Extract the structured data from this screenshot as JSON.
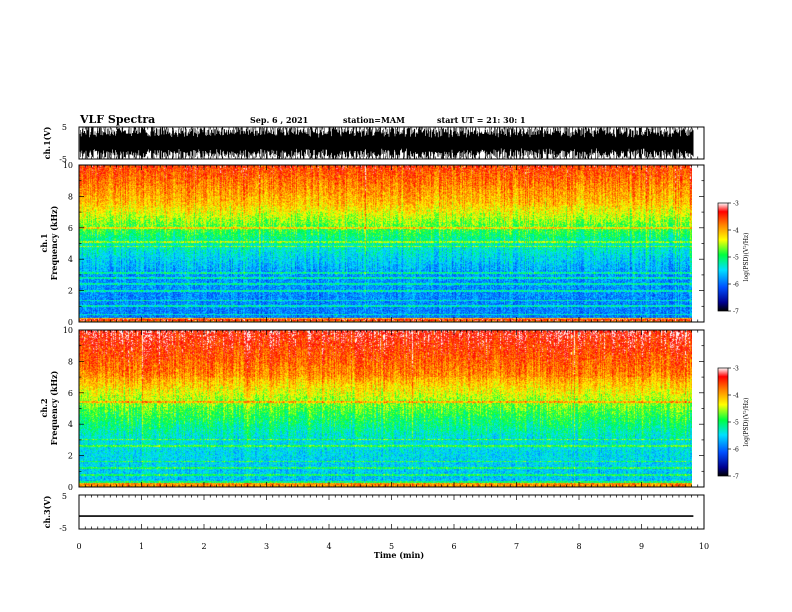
{
  "header": {
    "title": "VLF Spectra",
    "date": "Sep. 6 , 2021",
    "station": "station=MAM",
    "start_ut": "start UT =  21: 30: 1"
  },
  "chart_data": [
    {
      "type": "line",
      "name": "ch1-waveform",
      "ylabel": "ch.1(V)",
      "ylim": [
        -5,
        5
      ],
      "yticks": [
        "5",
        "-5"
      ],
      "xlim": [
        0,
        10
      ]
    },
    {
      "type": "heatmap",
      "name": "ch1-spectrogram",
      "ylabel_line1": "ch.1",
      "ylabel_line2": "Frequency (kHz)",
      "ylim": [
        0,
        10
      ],
      "yticks": [
        "0",
        "2",
        "4",
        "6",
        "8",
        "10"
      ],
      "xlim": [
        0,
        10
      ],
      "colorbar": {
        "label": "log(PSD)(V²/Hz)",
        "range": [
          -7,
          -3
        ],
        "ticks": [
          "-3",
          "-4",
          "-5",
          "-6",
          "-7"
        ]
      }
    },
    {
      "type": "heatmap",
      "name": "ch2-spectrogram",
      "ylabel_line1": "ch.2",
      "ylabel_line2": "Frequency (kHz)",
      "ylim": [
        0,
        10
      ],
      "yticks": [
        "0",
        "2",
        "4",
        "6",
        "8",
        "10"
      ],
      "xlim": [
        0,
        10
      ],
      "colorbar": {
        "label": "log(PSD)(V²/Hz)",
        "range": [
          -7,
          -3
        ],
        "ticks": [
          "-3",
          "-4",
          "-5",
          "-6",
          "-7"
        ]
      }
    },
    {
      "type": "line",
      "name": "ch3-waveform",
      "ylabel": "ch.3(V)",
      "ylim": [
        -5,
        5
      ],
      "yticks": [
        "5",
        "-5"
      ],
      "xlim": [
        0,
        10
      ],
      "constant_value": -1.2
    }
  ],
  "xaxis": {
    "label": "Time (min)",
    "ticks": [
      "0",
      "1",
      "2",
      "3",
      "4",
      "5",
      "6",
      "7",
      "8",
      "9",
      "10"
    ],
    "data_end": 9.83
  }
}
